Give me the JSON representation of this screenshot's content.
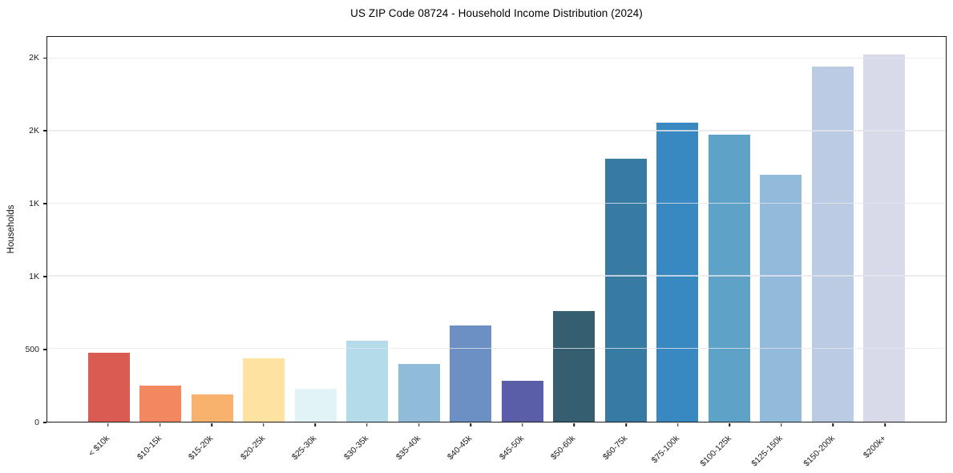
{
  "chart_data": {
    "type": "bar",
    "title": "US ZIP Code 08724 - Household Income Distribution (2024)",
    "xlabel": "",
    "ylabel": "Households",
    "categories": [
      "< $10k",
      "$10-15k",
      "$15-20k",
      "$20-25k",
      "$25-30k",
      "$30-35k",
      "$35-40k",
      "$40-45k",
      "$45-50k",
      "$50-60k",
      "$60-75k",
      "$75-100k",
      "$100-125k",
      "$125-150k",
      "$150-200k",
      "$200k+"
    ],
    "values": [
      475,
      250,
      190,
      435,
      225,
      560,
      400,
      660,
      280,
      760,
      1810,
      2060,
      1975,
      1700,
      2445,
      2530
    ],
    "bar_colors": [
      "#d95b52",
      "#f3875f",
      "#f9b26e",
      "#fde2a2",
      "#e2f3f7",
      "#b3dbea",
      "#90bcd9",
      "#6c90c4",
      "#5a5ea9",
      "#355f70",
      "#377ba2",
      "#3889c1",
      "#5fa2c8",
      "#92badb",
      "#bccbe4",
      "#d8dae9"
    ],
    "ylim": [
      0,
      2650
    ],
    "gridlines": [
      500,
      1000,
      1500,
      2000,
      2500
    ],
    "y_ticks": [
      {
        "value": 0,
        "label": "0"
      },
      {
        "value": 500,
        "label": "500"
      },
      {
        "value": 1000,
        "label": "1K"
      },
      {
        "value": 1500,
        "label": "1K"
      },
      {
        "value": 2000,
        "label": "2K"
      },
      {
        "value": 2500,
        "label": "2K"
      }
    ],
    "grid": "horizontal",
    "legend": "none",
    "colors": {
      "background": "#ffffff",
      "spine": "#1a1a1a",
      "gridline": "#e8e8ee",
      "text": "#1a1a1a"
    }
  }
}
